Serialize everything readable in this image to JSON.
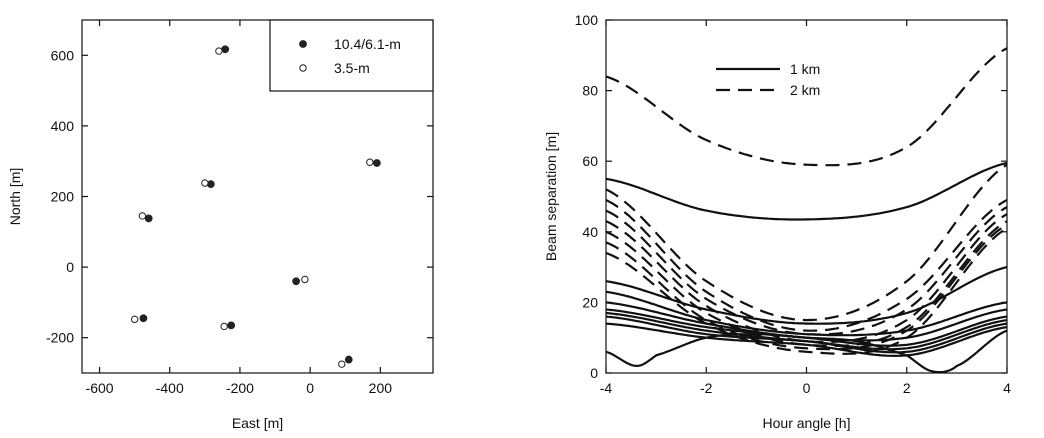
{
  "chart_data": [
    {
      "type": "scatter",
      "xlabel": "East [m]",
      "ylabel": "North [m]",
      "xlim": [
        -650,
        350
      ],
      "ylim": [
        -300,
        700
      ],
      "xticks": [
        -600,
        -400,
        -200,
        0,
        200
      ],
      "yticks": [
        -200,
        0,
        200,
        400,
        600
      ],
      "grid": false,
      "legend_position": "top-right",
      "series": [
        {
          "name": "10.4/6.1-m",
          "marker": "filled",
          "points": [
            [
              -242,
              617
            ],
            [
              -283,
              235
            ],
            [
              -460,
              138
            ],
            [
              -40,
              -40
            ],
            [
              190,
              295
            ],
            [
              -475,
              -145
            ],
            [
              -225,
              -165
            ],
            [
              110,
              -262
            ]
          ]
        },
        {
          "name": "3.5-m",
          "marker": "open",
          "points": [
            [
              -260,
              612
            ],
            [
              -300,
              238
            ],
            [
              -478,
              145
            ],
            [
              -15,
              -35
            ],
            [
              170,
              297
            ],
            [
              -500,
              -148
            ],
            [
              -245,
              -168
            ],
            [
              90,
              -275
            ]
          ]
        }
      ]
    },
    {
      "type": "line",
      "xlabel": "Hour angle  [h]",
      "ylabel": "Beam separation  [m]",
      "xlim": [
        -4,
        4
      ],
      "ylim": [
        0,
        100
      ],
      "xticks": [
        -4,
        -2,
        0,
        2,
        4
      ],
      "yticks": [
        0,
        20,
        40,
        60,
        80,
        100
      ],
      "grid": false,
      "legend_position": "top-left",
      "legend": [
        {
          "label": "1 km",
          "style": "solid"
        },
        {
          "label": "2 km",
          "style": "dashed"
        }
      ],
      "series": [
        {
          "style": "solid",
          "x": [
            -4,
            -2,
            0,
            2,
            4
          ],
          "y": [
            55,
            46,
            43.5,
            47,
            59.5
          ]
        },
        {
          "style": "solid",
          "x": [
            -4,
            -2,
            0,
            2,
            4
          ],
          "y": [
            26,
            18,
            14,
            17,
            30
          ]
        },
        {
          "style": "solid",
          "x": [
            -4,
            -2,
            0,
            2,
            4
          ],
          "y": [
            23,
            15,
            11,
            12,
            20
          ]
        },
        {
          "style": "solid",
          "x": [
            -4,
            -2,
            0,
            2,
            4
          ],
          "y": [
            20,
            14,
            10,
            10,
            18
          ]
        },
        {
          "style": "solid",
          "x": [
            -4,
            -2,
            0,
            2,
            4
          ],
          "y": [
            18,
            13,
            10,
            8,
            16
          ]
        },
        {
          "style": "solid",
          "x": [
            -4,
            -2,
            0,
            2,
            4
          ],
          "y": [
            17,
            12,
            9,
            7,
            15
          ]
        },
        {
          "style": "solid",
          "x": [
            -4,
            -2,
            0,
            2,
            4
          ],
          "y": [
            16,
            11,
            9,
            6,
            14
          ]
        },
        {
          "style": "solid",
          "x": [
            -4,
            -2,
            0,
            2,
            4
          ],
          "y": [
            14,
            10,
            8,
            5,
            13
          ]
        },
        {
          "style": "solid",
          "x": [
            -4,
            -3.4,
            -3,
            -2,
            -1,
            0,
            1,
            2,
            2.5,
            3,
            4
          ],
          "y": [
            6,
            2,
            5,
            10,
            11,
            10,
            9,
            5,
            0.5,
            2,
            12
          ]
        },
        {
          "style": "dashed",
          "x": [
            -4,
            -2,
            0,
            2,
            4
          ],
          "y": [
            84,
            66,
            59,
            64,
            92
          ]
        },
        {
          "style": "dashed",
          "x": [
            -4,
            -2,
            0,
            2,
            4
          ],
          "y": [
            52,
            26,
            15,
            26,
            59
          ]
        },
        {
          "style": "dashed",
          "x": [
            -4,
            -2,
            0,
            2,
            4
          ],
          "y": [
            49,
            23,
            12,
            21,
            49
          ]
        },
        {
          "style": "dashed",
          "x": [
            -4,
            -2,
            0,
            2,
            4
          ],
          "y": [
            46,
            21,
            11,
            18,
            47
          ]
        },
        {
          "style": "dashed",
          "x": [
            -4,
            -2,
            0,
            2,
            4
          ],
          "y": [
            43,
            19,
            9,
            15,
            45
          ]
        },
        {
          "style": "dashed",
          "x": [
            -4,
            -2,
            0,
            2,
            4
          ],
          "y": [
            40,
            17,
            8,
            13,
            43
          ]
        },
        {
          "style": "dashed",
          "x": [
            -4,
            -2,
            0,
            2,
            4
          ],
          "y": [
            37,
            15,
            7,
            12,
            42
          ]
        },
        {
          "style": "dashed",
          "x": [
            -4,
            -2,
            0,
            2,
            4
          ],
          "y": [
            34,
            14,
            6,
            10,
            41
          ]
        }
      ]
    }
  ]
}
